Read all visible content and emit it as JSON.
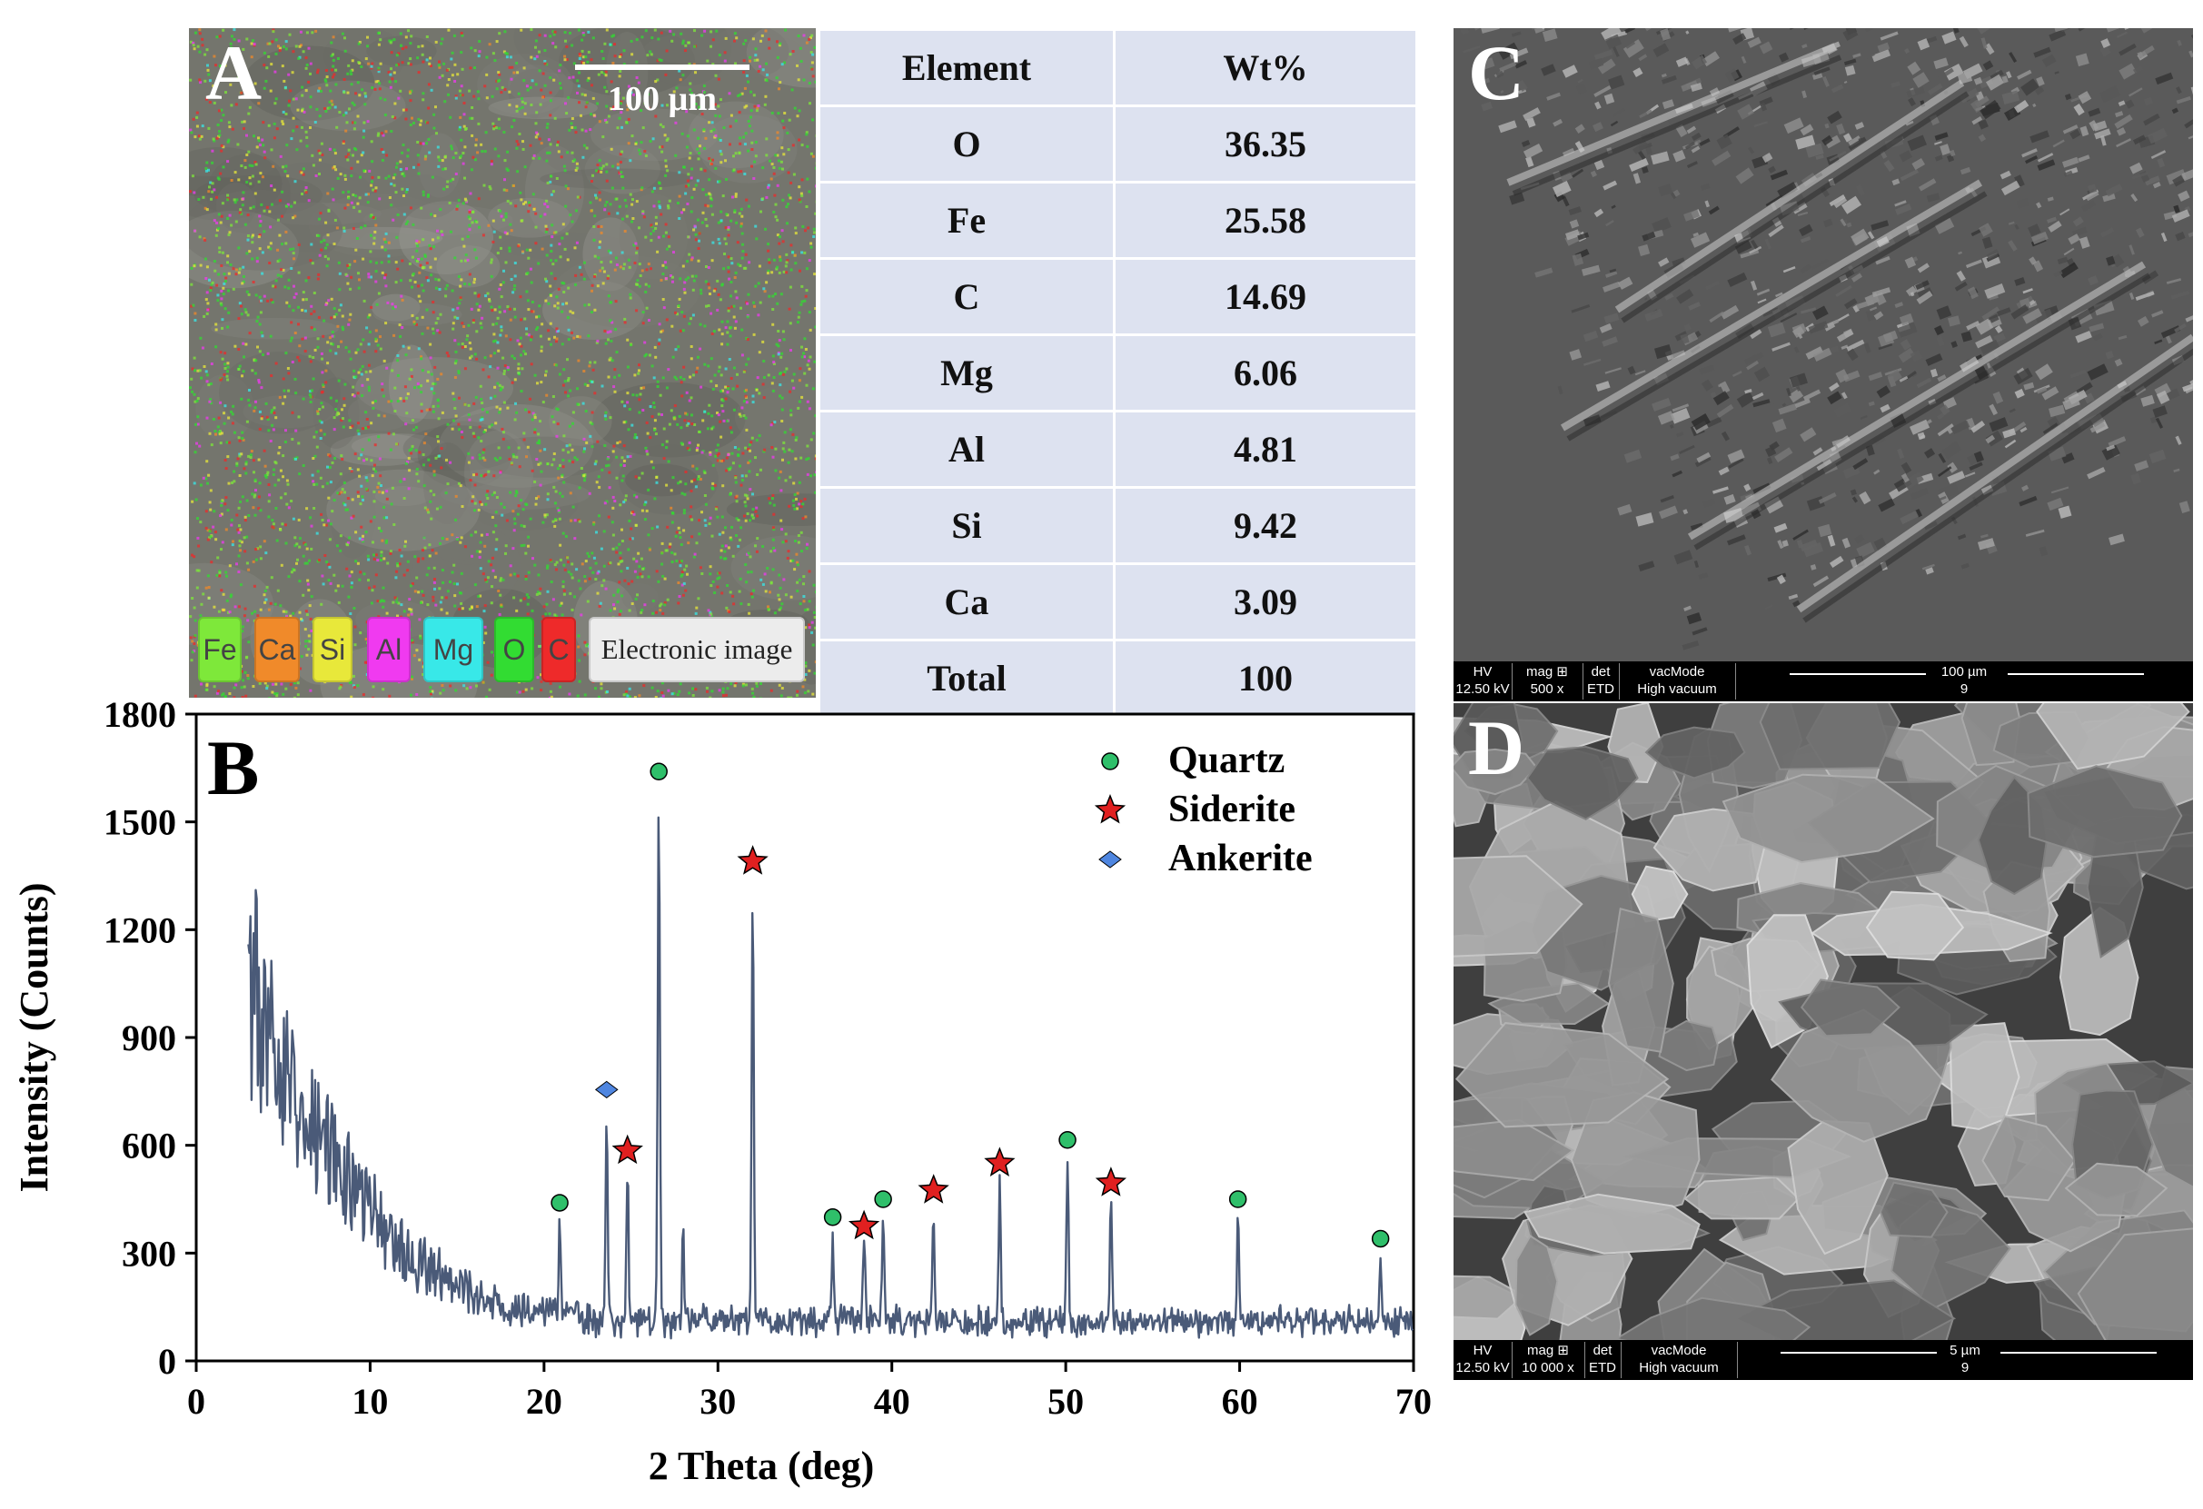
{
  "panel_a": {
    "letter": "A",
    "scale_label": "100 µm",
    "element_chips": [
      {
        "label": "Fe",
        "color": "#7ee83a"
      },
      {
        "label": "Ca",
        "color": "#f08a2a"
      },
      {
        "label": "Si",
        "color": "#e8e83a"
      },
      {
        "label": "Al",
        "color": "#f03af0"
      },
      {
        "label": "Mg",
        "color": "#38e8e8"
      },
      {
        "label": "O",
        "color": "#32dc32"
      },
      {
        "label": "C",
        "color": "#ee2a2a"
      }
    ],
    "electronic_image_label": "Electronic image"
  },
  "eds_table": {
    "headers": [
      "Element",
      "Wt%"
    ],
    "rows": [
      [
        "O",
        "36.35"
      ],
      [
        "Fe",
        "25.58"
      ],
      [
        "C",
        "14.69"
      ],
      [
        "Mg",
        "6.06"
      ],
      [
        "Al",
        "4.81"
      ],
      [
        "Si",
        "9.42"
      ],
      [
        "Ca",
        "3.09"
      ],
      [
        "Total",
        "100"
      ]
    ]
  },
  "panel_c": {
    "letter": "C",
    "info_headers": [
      "HV",
      "mag ⊞",
      "det",
      "vacMode"
    ],
    "info_values": [
      "12.50 kV",
      "500 x",
      "ETD",
      "High vacuum"
    ],
    "scale_label": "100 µm",
    "frame_number": "9"
  },
  "panel_d": {
    "letter": "D",
    "info_headers": [
      "HV",
      "mag ⊞",
      "det",
      "vacMode"
    ],
    "info_values": [
      "12.50 kV",
      "10 000 x",
      "ETD",
      "High vacuum"
    ],
    "scale_label": "5 µm",
    "frame_number": "9"
  },
  "chart_data": {
    "type": "line",
    "panel_letter": "B",
    "xlabel": "2 Theta (deg)",
    "ylabel": "Intensity (Counts)",
    "xlim": [
      0,
      70
    ],
    "ylim": [
      0,
      1800
    ],
    "xticks": [
      0,
      10,
      20,
      30,
      40,
      50,
      60,
      70
    ],
    "yticks": [
      0,
      300,
      600,
      900,
      1200,
      1500,
      1800
    ],
    "grid": false,
    "legend_position": "top-right",
    "line_color": "#4a5a78",
    "background": {
      "x_start": 3,
      "y_start": 1000,
      "x_floor": 22,
      "y_floor": 130
    },
    "peaks": [
      {
        "x": 3.4,
        "y": 1240
      },
      {
        "x": 20.9,
        "y": 390
      },
      {
        "x": 23.6,
        "y": 700
      },
      {
        "x": 24.8,
        "y": 540
      },
      {
        "x": 26.6,
        "y": 1590
      },
      {
        "x": 28.0,
        "y": 380
      },
      {
        "x": 32.0,
        "y": 1320
      },
      {
        "x": 36.6,
        "y": 340
      },
      {
        "x": 38.4,
        "y": 330
      },
      {
        "x": 39.5,
        "y": 410
      },
      {
        "x": 42.4,
        "y": 420
      },
      {
        "x": 46.2,
        "y": 500
      },
      {
        "x": 50.1,
        "y": 565
      },
      {
        "x": 52.6,
        "y": 440
      },
      {
        "x": 59.9,
        "y": 400
      },
      {
        "x": 68.1,
        "y": 280
      }
    ],
    "markers": [
      {
        "phase": "Quartz",
        "x": 20.9,
        "y": 440
      },
      {
        "phase": "Quartz",
        "x": 26.6,
        "y": 1640
      },
      {
        "phase": "Quartz",
        "x": 36.6,
        "y": 400
      },
      {
        "phase": "Quartz",
        "x": 39.5,
        "y": 450
      },
      {
        "phase": "Quartz",
        "x": 50.1,
        "y": 615
      },
      {
        "phase": "Quartz",
        "x": 59.9,
        "y": 450
      },
      {
        "phase": "Quartz",
        "x": 68.1,
        "y": 340
      },
      {
        "phase": "Siderite",
        "x": 24.8,
        "y": 585
      },
      {
        "phase": "Siderite",
        "x": 32.0,
        "y": 1390
      },
      {
        "phase": "Siderite",
        "x": 38.4,
        "y": 375
      },
      {
        "phase": "Siderite",
        "x": 42.4,
        "y": 475
      },
      {
        "phase": "Siderite",
        "x": 46.2,
        "y": 550
      },
      {
        "phase": "Siderite",
        "x": 52.6,
        "y": 495
      },
      {
        "phase": "Ankerite",
        "x": 23.6,
        "y": 755
      }
    ],
    "legend": [
      {
        "name": "Quartz",
        "marker": "circle",
        "color": "#2fbf6a"
      },
      {
        "name": "Siderite",
        "marker": "star",
        "color": "#e02020"
      },
      {
        "name": "Ankerite",
        "marker": "diamond",
        "color": "#4f86e0"
      }
    ]
  }
}
